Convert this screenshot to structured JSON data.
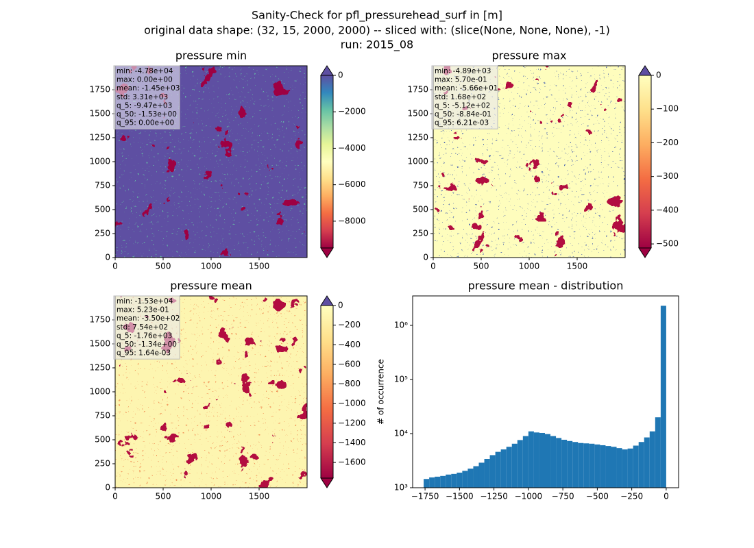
{
  "suptitle": [
    "Sanity-Check for pfl_pressurehead_surf in [m]",
    "original data shape: (32, 15, 2000, 2000) -- sliced with: (slice(None, None, None), -1)",
    "run: 2015_08"
  ],
  "chart_data": [
    {
      "type": "heatmap",
      "title": "pressure min",
      "xlim": [
        0,
        2000
      ],
      "xticks": [
        0,
        500,
        1000,
        1500
      ],
      "ylim": [
        0,
        2000
      ],
      "yticks": [
        0,
        250,
        500,
        750,
        1000,
        1250,
        1500,
        1750
      ],
      "clim": [
        -9470,
        0
      ],
      "cticks": [
        0,
        {
          "value": -2000,
          "label": "−2000"
        },
        {
          "value": -4000,
          "label": "−4000"
        },
        {
          "value": -6000,
          "label": "−6000"
        },
        {
          "value": -8000,
          "label": "−8000"
        }
      ],
      "colorbar_colors": [
        "#9e0142",
        "#d53e4f",
        "#f46d43",
        "#fdae61",
        "#fee08b",
        "#ffffbf",
        "#e6f598",
        "#abdda4",
        "#66c2a5",
        "#3288bd",
        "#5e4fa2"
      ],
      "base_color": "#5e4fa2",
      "texture_colors": [
        "#66c2a5",
        "#9e0142"
      ],
      "stats": [
        "min: -4.78e+04",
        "max: 0.00e+00",
        "mean: -1.45e+03",
        "std: 3.31e+03",
        "q_5: -9.47e+03",
        "q_50: -1.53e+00",
        "q_95: 0.00e+00"
      ]
    },
    {
      "type": "heatmap",
      "title": "pressure max",
      "xlim": [
        0,
        2000
      ],
      "xticks": [
        0,
        500,
        1000,
        1500
      ],
      "ylim": [
        0,
        2000
      ],
      "yticks": [
        0,
        250,
        500,
        750,
        1000,
        1250,
        1500,
        1750
      ],
      "clim": [
        -512,
        0
      ],
      "cticks": [
        0,
        {
          "value": -100,
          "label": "−100"
        },
        {
          "value": -200,
          "label": "−200"
        },
        {
          "value": -300,
          "label": "−300"
        },
        {
          "value": -400,
          "label": "−400"
        },
        {
          "value": -500,
          "label": "−500"
        }
      ],
      "colorbar_colors": [
        "#9e0142",
        "#d53e4f",
        "#f46d43",
        "#fdae61",
        "#fee08b",
        "#ffffbf"
      ],
      "base_color": "#fefdbd",
      "texture_colors": [
        "#3f5bb0",
        "#b2103f"
      ],
      "stats": [
        "min: -4.89e+03",
        "max: 5.70e-01",
        "mean: -5.66e+01",
        "std: 1.68e+02",
        "q_5: -5.12e+02",
        "q_50: -8.84e-01",
        "q_95: 6.21e-03"
      ]
    },
    {
      "type": "heatmap",
      "title": "pressure mean",
      "xlim": [
        0,
        2000
      ],
      "xticks": [
        0,
        500,
        1000,
        1500
      ],
      "ylim": [
        0,
        2000
      ],
      "yticks": [
        0,
        250,
        500,
        750,
        1000,
        1250,
        1500,
        1750
      ],
      "clim": [
        -1760,
        0
      ],
      "cticks": [
        0,
        {
          "value": -200,
          "label": "−200"
        },
        {
          "value": -400,
          "label": "−400"
        },
        {
          "value": -600,
          "label": "−600"
        },
        {
          "value": -800,
          "label": "−800"
        },
        {
          "value": -1000,
          "label": "−1000"
        },
        {
          "value": -1200,
          "label": "−1200"
        },
        {
          "value": -1400,
          "label": "−1400"
        },
        {
          "value": -1600,
          "label": "−1600"
        }
      ],
      "colorbar_colors": [
        "#9e0142",
        "#d53e4f",
        "#f46d43",
        "#fdae61",
        "#fee08b",
        "#ffffbf"
      ],
      "base_color": "#fdf5b0",
      "texture_colors": [
        "#f08a50",
        "#b2103f"
      ],
      "stats": [
        "min: -1.53e+04",
        "max: 5.23e-01",
        "mean: -3.50e+02",
        "std: 7.54e+02",
        "q_5: -1.76e+03",
        "q_50: -1.34e+00",
        "q_95: 1.64e-03"
      ]
    },
    {
      "type": "histogram",
      "title": "pressure mean - distribution",
      "ylabel": "# of occurrence",
      "color": "#1f77b4",
      "log_y": true,
      "xlim": [
        -1840,
        90
      ],
      "xticks": [
        {
          "value": -1750,
          "label": "−1750"
        },
        {
          "value": -1500,
          "label": "−1500"
        },
        {
          "value": -1250,
          "label": "−1250"
        },
        {
          "value": -1000,
          "label": "−1000"
        },
        {
          "value": -750,
          "label": "−750"
        },
        {
          "value": -500,
          "label": "−500"
        },
        {
          "value": -250,
          "label": "−250"
        },
        0
      ],
      "ylim": [
        1000,
        3500000
      ],
      "yticks": [
        {
          "value": 1000,
          "label": "10³"
        },
        {
          "value": 10000,
          "label": "10⁴"
        },
        {
          "value": 100000,
          "label": "10⁵"
        },
        {
          "value": 1000000,
          "label": "10⁶"
        }
      ],
      "bins": [
        -1760,
        -1720,
        -1680,
        -1640,
        -1600,
        -1560,
        -1520,
        -1480,
        -1440,
        -1400,
        -1360,
        -1320,
        -1280,
        -1240,
        -1200,
        -1160,
        -1120,
        -1080,
        -1040,
        -1000,
        -960,
        -920,
        -880,
        -840,
        -800,
        -760,
        -720,
        -680,
        -640,
        -600,
        -560,
        -520,
        -480,
        -440,
        -400,
        -360,
        -320,
        -280,
        -240,
        -200,
        -160,
        -120,
        -80,
        -40,
        0
      ],
      "values": [
        1450,
        1550,
        1600,
        1650,
        1750,
        1800,
        1900,
        2050,
        2250,
        2500,
        2900,
        3400,
        4000,
        4600,
        5100,
        5700,
        6500,
        7600,
        9000,
        11000,
        10500,
        10300,
        9800,
        9000,
        8300,
        7700,
        7300,
        7000,
        6700,
        6600,
        6500,
        6300,
        6100,
        5900,
        5700,
        5400,
        5100,
        5300,
        6000,
        7000,
        8500,
        11000,
        20000,
        2300000
      ]
    }
  ]
}
